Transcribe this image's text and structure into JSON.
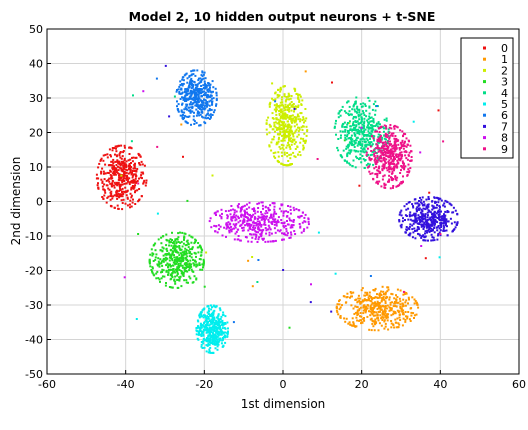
{
  "chart_data": {
    "type": "scatter",
    "title": "Model 2, 10 hidden output neurons + t-SNE",
    "xlabel": "1st dimension",
    "ylabel": "2nd dimension",
    "xlim": [
      -60,
      60
    ],
    "ylim": [
      -50,
      50
    ],
    "x_ticks": [
      "-60",
      "-40",
      "-20",
      "0",
      "20",
      "40",
      "60"
    ],
    "y_ticks": [
      "50",
      "40",
      "30",
      "20",
      "10",
      "0",
      "-10",
      "-20",
      "-30",
      "-40",
      "-50"
    ],
    "grid": true,
    "legend_position": "top-right",
    "series": [
      {
        "name": "0",
        "color": "#ee1111",
        "center": [
          -41,
          7
        ],
        "spread": [
          5.5,
          8
        ]
      },
      {
        "name": "1",
        "color": "#ff9900",
        "center": [
          24,
          -31
        ],
        "spread": [
          9,
          5.5
        ]
      },
      {
        "name": "2",
        "color": "#ccee00",
        "center": [
          1,
          22
        ],
        "spread": [
          4.5,
          10
        ]
      },
      {
        "name": "3",
        "color": "#22dd22",
        "center": [
          -27,
          -17
        ],
        "spread": [
          6,
          7
        ]
      },
      {
        "name": "4",
        "color": "#00dd88",
        "center": [
          20,
          20
        ],
        "spread": [
          6,
          9
        ]
      },
      {
        "name": "5",
        "color": "#00eeee",
        "center": [
          -18,
          -37
        ],
        "spread": [
          3.5,
          6
        ]
      },
      {
        "name": "6",
        "color": "#1177ee",
        "center": [
          -22,
          30
        ],
        "spread": [
          4.5,
          7
        ]
      },
      {
        "name": "7",
        "color": "#3311dd",
        "center": [
          37,
          -5
        ],
        "spread": [
          6.5,
          5.5
        ]
      },
      {
        "name": "8",
        "color": "#cc11ee",
        "center": [
          -6,
          -6
        ],
        "spread": [
          11,
          5
        ]
      },
      {
        "name": "9",
        "color": "#ee1188",
        "center": [
          27,
          13
        ],
        "spread": [
          5,
          8
        ]
      }
    ],
    "points_per_series": 420
  }
}
